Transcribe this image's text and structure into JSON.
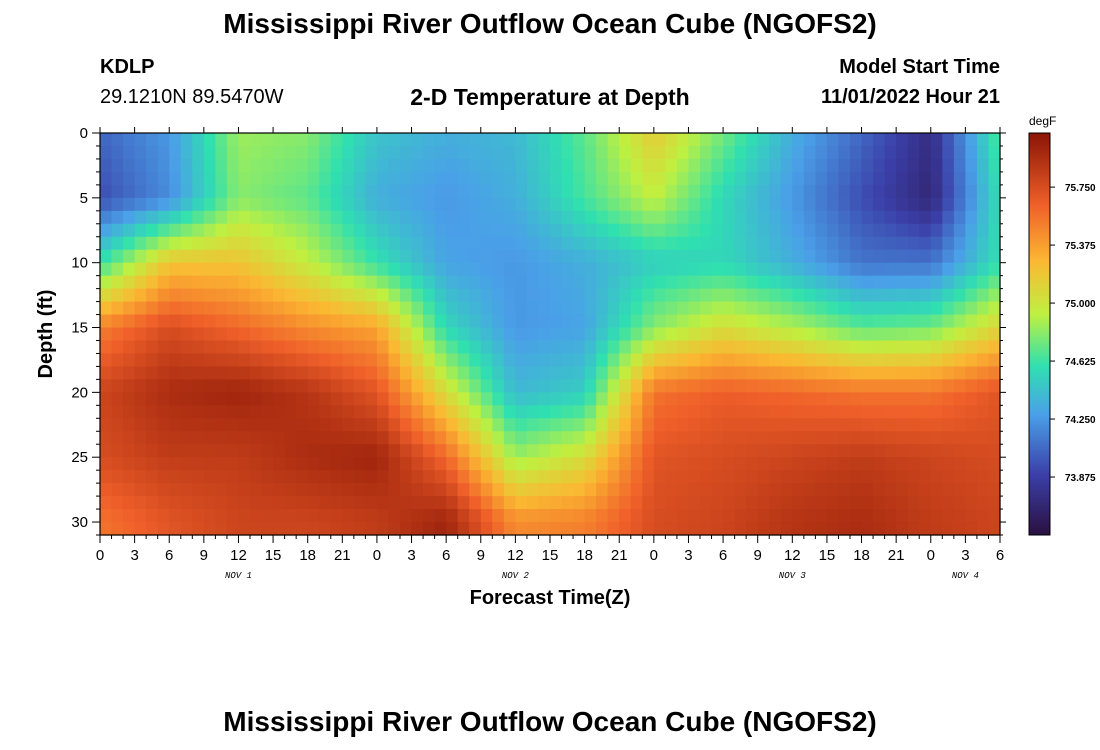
{
  "header": {
    "title": "Mississippi River Outflow Ocean Cube (NGOFS2)",
    "station": "KDLP",
    "coords": "29.1210N  89.5470W",
    "subtitle": "2-D Temperature at Depth",
    "start_label": "Model Start Time",
    "start_value": "11/01/2022 Hour 21"
  },
  "footer": {
    "title": "Mississippi River Outflow Ocean Cube (NGOFS2)"
  },
  "chart_data": {
    "type": "heatmap",
    "title": "2-D Temperature at Depth",
    "xlabel": "Forecast Time(Z)",
    "ylabel": "Depth (ft)",
    "x_unit": "hours since 11/01/2022 00Z",
    "xlim": [
      0,
      78
    ],
    "ylim": [
      31,
      0
    ],
    "x_tick_labels": [
      "0",
      "3",
      "6",
      "9",
      "12",
      "15",
      "18",
      "21",
      "0",
      "3",
      "6",
      "9",
      "12",
      "15",
      "18",
      "21",
      "0",
      "3",
      "6",
      "9",
      "12",
      "15",
      "18",
      "21",
      "0",
      "3",
      "6"
    ],
    "y_ticks": [
      0,
      5,
      10,
      15,
      20,
      25,
      30
    ],
    "y_tick_labels": [
      "0",
      "5",
      "10",
      "15",
      "20",
      "25",
      "30"
    ],
    "day_labels": [
      {
        "label": "NOV 1",
        "hour": 12
      },
      {
        "label": "NOV 2",
        "hour": 36
      },
      {
        "label": "NOV 3",
        "hour": 60
      },
      {
        "label": "NOV 4",
        "hour": 75
      }
    ],
    "colorbar": {
      "unit": "degF",
      "tick_values": [
        75.75,
        75.375,
        75.0,
        74.625,
        74.25,
        73.875
      ],
      "tick_labels": [
        "75.750",
        "75.375",
        "75.000",
        "74.625",
        "74.250",
        "73.875"
      ],
      "range": [
        73.5,
        76.1
      ]
    },
    "x_grid_hours": [
      0,
      6,
      12,
      18,
      24,
      30,
      36,
      42,
      48,
      54,
      60,
      66,
      72,
      78
    ],
    "y_grid_depths": [
      0,
      5,
      10,
      15,
      20,
      25,
      30
    ],
    "values_note": "degF; rows = depth grid, columns = forecast hour grid",
    "values": [
      [
        74.05,
        74.25,
        74.85,
        74.8,
        74.45,
        74.35,
        74.4,
        74.7,
        75.15,
        74.75,
        74.35,
        74.05,
        73.75,
        74.7
      ],
      [
        73.95,
        74.2,
        74.8,
        74.7,
        74.35,
        74.25,
        74.35,
        74.65,
        74.95,
        74.55,
        74.25,
        73.95,
        73.7,
        74.6
      ],
      [
        74.6,
        75.2,
        75.2,
        74.95,
        74.6,
        74.3,
        74.25,
        74.35,
        74.5,
        74.55,
        74.35,
        74.1,
        74.1,
        74.6
      ],
      [
        75.5,
        75.75,
        75.6,
        75.45,
        75.35,
        74.55,
        74.25,
        74.3,
        74.8,
        75.05,
        74.9,
        74.7,
        74.75,
        75.1
      ],
      [
        75.8,
        75.95,
        76.0,
        75.9,
        75.7,
        75.05,
        74.4,
        74.5,
        75.55,
        75.65,
        75.6,
        75.55,
        75.55,
        75.7
      ],
      [
        75.75,
        75.85,
        75.85,
        75.95,
        76.0,
        75.6,
        74.85,
        75.05,
        75.7,
        75.75,
        75.8,
        75.85,
        75.8,
        75.75
      ],
      [
        75.55,
        75.7,
        75.8,
        75.8,
        75.85,
        76.0,
        75.45,
        75.5,
        75.75,
        75.8,
        75.9,
        75.95,
        75.85,
        75.8
      ]
    ]
  }
}
